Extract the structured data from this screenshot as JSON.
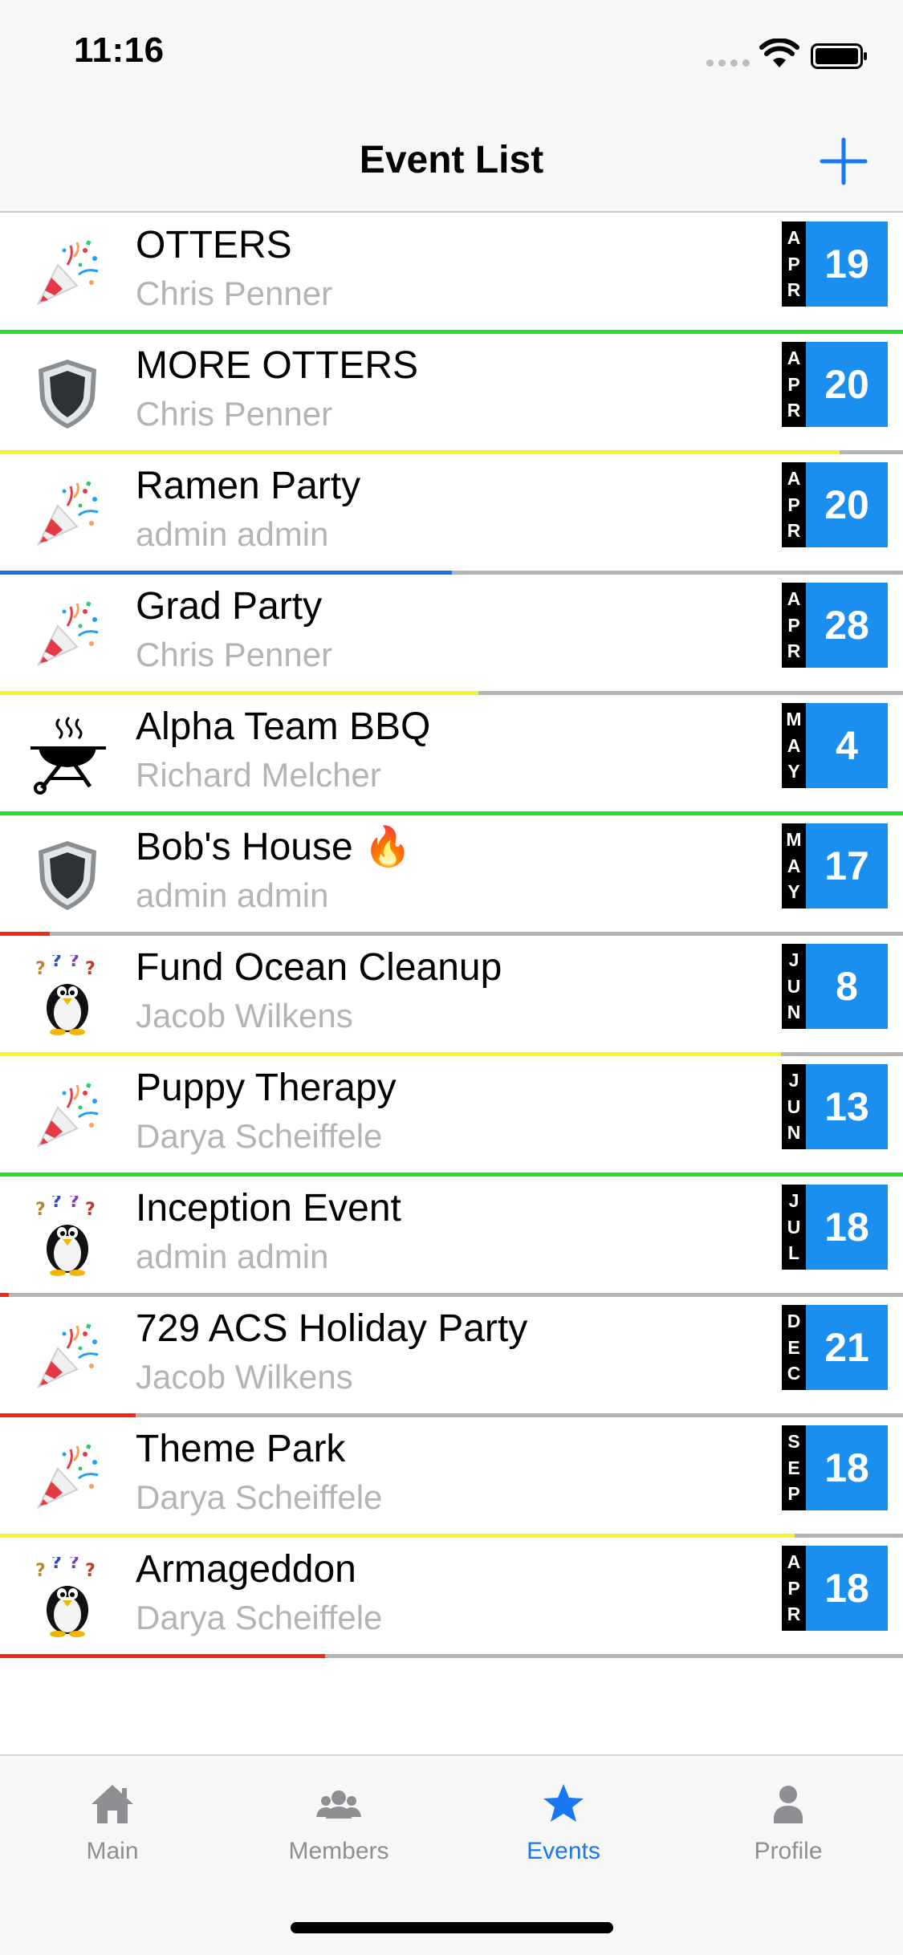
{
  "status_bar": {
    "time": "11:16"
  },
  "nav": {
    "title": "Event List",
    "add_icon": "plus-icon"
  },
  "colors": {
    "accent": "#1877f2",
    "badge_day": "#1a8fef",
    "badge_month": "#000000",
    "track": "#b4b4b4",
    "green": "#22e322",
    "yellow": "#f5f52a",
    "blue": "#1a72e0",
    "red": "#ee2a14"
  },
  "events": [
    {
      "title": "OTTERS",
      "host": "Chris Penner",
      "month": "APR",
      "day": "19",
      "icon": "party-popper-icon",
      "progress": 1.0,
      "progress_color": "#22e322"
    },
    {
      "title": "MORE OTTERS",
      "host": "Chris Penner",
      "month": "APR",
      "day": "20",
      "icon": "shield-icon",
      "progress": 0.93,
      "progress_color": "#f5f52a"
    },
    {
      "title": "Ramen Party",
      "host": "admin admin",
      "month": "APR",
      "day": "20",
      "icon": "party-popper-icon",
      "progress": 0.5,
      "progress_color": "#1a72e0"
    },
    {
      "title": "Grad Party",
      "host": "Chris Penner",
      "month": "APR",
      "day": "28",
      "icon": "party-popper-icon",
      "progress": 0.53,
      "progress_color": "#f5f52a"
    },
    {
      "title": "Alpha Team BBQ",
      "host": "Richard Melcher",
      "month": "MAY",
      "day": "4",
      "icon": "grill-icon",
      "progress": 1.0,
      "progress_color": "#22e322"
    },
    {
      "title": "Bob's House 🔥",
      "host": "admin admin",
      "month": "MAY",
      "day": "17",
      "icon": "shield-icon",
      "progress": 0.055,
      "progress_color": "#ee2a14"
    },
    {
      "title": "Fund Ocean Cleanup",
      "host": "Jacob Wilkens",
      "month": "JUN",
      "day": "8",
      "icon": "confused-penguin-icon",
      "progress": 0.865,
      "progress_color": "#f5f52a"
    },
    {
      "title": "Puppy Therapy",
      "host": "Darya Scheiffele",
      "month": "JUN",
      "day": "13",
      "icon": "party-popper-icon",
      "progress": 1.0,
      "progress_color": "#22e322"
    },
    {
      "title": "Inception Event",
      "host": "admin admin",
      "month": "JUL",
      "day": "18",
      "icon": "confused-penguin-icon",
      "progress": 0.01,
      "progress_color": "#ee2a14"
    },
    {
      "title": "729 ACS Holiday Party",
      "host": "Jacob Wilkens",
      "month": "DEC",
      "day": "21",
      "icon": "party-popper-icon",
      "progress": 0.15,
      "progress_color": "#ee2a14"
    },
    {
      "title": "Theme Park",
      "host": "Darya Scheiffele",
      "month": "SEP",
      "day": "18",
      "icon": "party-popper-icon",
      "progress": 0.88,
      "progress_color": "#f5f52a"
    },
    {
      "title": "Armageddon",
      "host": "Darya Scheiffele",
      "month": "APR",
      "day": "18",
      "icon": "confused-penguin-icon",
      "progress": 0.36,
      "progress_color": "#ee2a14"
    }
  ],
  "tabs": [
    {
      "label": "Main",
      "icon": "home-icon",
      "active": false
    },
    {
      "label": "Members",
      "icon": "members-icon",
      "active": false
    },
    {
      "label": "Events",
      "icon": "star-icon",
      "active": true
    },
    {
      "label": "Profile",
      "icon": "person-icon",
      "active": false
    }
  ]
}
